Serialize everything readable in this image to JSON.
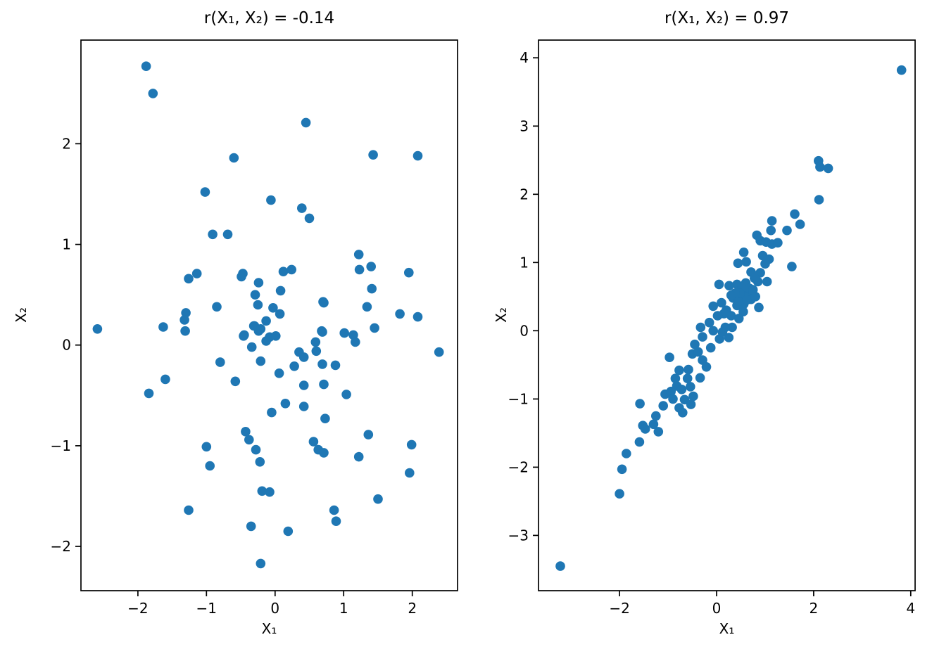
{
  "figure": {
    "background": "#ffffff",
    "spine_color": "#000000",
    "tick_label_color": "#000000"
  },
  "chart_data": [
    {
      "type": "scatter",
      "title": "r(X₁, X₂) = -0.14",
      "xlabel": "X₁",
      "ylabel": "X₂",
      "marker_color": "#1f77b4",
      "grid": false,
      "legend": null,
      "xlim": [
        -2.83,
        2.66
      ],
      "ylim": [
        -2.44,
        3.03
      ],
      "xticks": [
        -2,
        -1,
        0,
        1,
        2
      ],
      "yticks": [
        -2,
        -1,
        0,
        1,
        2
      ],
      "points": [
        [
          -1.88,
          2.77
        ],
        [
          -1.78,
          2.5
        ],
        [
          -0.6,
          1.86
        ],
        [
          -1.02,
          1.52
        ],
        [
          -0.06,
          1.44
        ],
        [
          -0.91,
          1.1
        ],
        [
          -0.69,
          1.1
        ],
        [
          -1.14,
          0.71
        ],
        [
          -1.26,
          0.66
        ],
        [
          -0.47,
          0.71
        ],
        [
          -0.85,
          0.38
        ],
        [
          -1.3,
          0.32
        ],
        [
          0.45,
          2.21
        ],
        [
          1.43,
          1.89
        ],
        [
          2.08,
          1.88
        ],
        [
          0.39,
          1.36
        ],
        [
          0.5,
          1.26
        ],
        [
          1.22,
          0.9
        ],
        [
          0.12,
          0.73
        ],
        [
          0.24,
          0.75
        ],
        [
          1.23,
          0.75
        ],
        [
          1.4,
          0.78
        ],
        [
          1.95,
          0.72
        ],
        [
          1.41,
          0.56
        ],
        [
          0.71,
          0.42
        ],
        [
          1.34,
          0.38
        ],
        [
          1.82,
          0.31
        ],
        [
          2.08,
          0.28
        ],
        [
          -0.49,
          0.68
        ],
        [
          -0.24,
          0.62
        ],
        [
          -0.29,
          0.5
        ],
        [
          -0.25,
          0.4
        ],
        [
          0.08,
          0.54
        ],
        [
          0.7,
          0.43
        ],
        [
          -0.03,
          0.37
        ],
        [
          0.07,
          0.31
        ],
        [
          -0.13,
          0.24
        ],
        [
          -0.31,
          0.19
        ],
        [
          -0.24,
          0.14
        ],
        [
          -0.46,
          0.09
        ],
        [
          -0.08,
          0.08
        ],
        [
          0.01,
          0.09
        ],
        [
          0.68,
          0.14
        ],
        [
          -0.34,
          -0.02
        ],
        [
          0.59,
          0.03
        ],
        [
          0.6,
          -0.06
        ],
        [
          0.35,
          -0.07
        ],
        [
          0.42,
          -0.12
        ],
        [
          1.01,
          0.12
        ],
        [
          1.14,
          0.1
        ],
        [
          1.17,
          0.03
        ],
        [
          0.28,
          -0.21
        ],
        [
          0.69,
          -0.19
        ],
        [
          0.88,
          -0.2
        ],
        [
          1.45,
          0.17
        ],
        [
          -2.59,
          0.16
        ],
        [
          -1.63,
          0.18
        ],
        [
          -1.32,
          0.25
        ],
        [
          -1.31,
          0.14
        ],
        [
          -0.45,
          0.1
        ],
        [
          -0.3,
          0.19
        ],
        [
          -0.21,
          0.16
        ],
        [
          -0.13,
          0.04
        ],
        [
          -0.21,
          -0.16
        ],
        [
          -0.8,
          -0.17
        ],
        [
          -1.6,
          -0.34
        ],
        [
          -0.58,
          -0.36
        ],
        [
          -1.84,
          -0.48
        ],
        [
          -0.05,
          -0.67
        ],
        [
          -0.43,
          -0.86
        ],
        [
          -0.38,
          -0.94
        ],
        [
          -1.0,
          -1.01
        ],
        [
          -0.28,
          -1.04
        ],
        [
          -0.95,
          -1.2
        ],
        [
          -0.22,
          -1.16
        ],
        [
          -0.19,
          -1.45
        ],
        [
          -0.08,
          -1.46
        ],
        [
          -1.26,
          -1.64
        ],
        [
          -0.35,
          -1.8
        ],
        [
          -0.21,
          -2.17
        ],
        [
          0.69,
          0.13
        ],
        [
          2.39,
          -0.07
        ],
        [
          0.06,
          -0.28
        ],
        [
          0.42,
          -0.4
        ],
        [
          0.71,
          -0.39
        ],
        [
          1.04,
          -0.49
        ],
        [
          0.15,
          -0.58
        ],
        [
          0.42,
          -0.61
        ],
        [
          0.73,
          -0.73
        ],
        [
          1.36,
          -0.89
        ],
        [
          0.56,
          -0.96
        ],
        [
          0.63,
          -1.04
        ],
        [
          0.71,
          -1.07
        ],
        [
          1.22,
          -1.11
        ],
        [
          1.99,
          -0.99
        ],
        [
          1.96,
          -1.27
        ],
        [
          1.5,
          -1.53
        ],
        [
          0.86,
          -1.64
        ],
        [
          0.89,
          -1.75
        ],
        [
          0.19,
          -1.85
        ]
      ]
    },
    {
      "type": "scatter",
      "title": "r(X₁, X₂) = 0.97",
      "xlabel": "X₁",
      "ylabel": "X₂",
      "marker_color": "#1f77b4",
      "grid": false,
      "legend": null,
      "xlim": [
        -3.67,
        4.09
      ],
      "ylim": [
        -3.81,
        4.26
      ],
      "xticks": [
        -2,
        0,
        2,
        4
      ],
      "yticks": [
        -3,
        -2,
        -1,
        0,
        1,
        2,
        3,
        4
      ],
      "points": [
        [
          3.81,
          3.82
        ],
        [
          2.1,
          2.49
        ],
        [
          2.13,
          2.4
        ],
        [
          2.3,
          2.38
        ],
        [
          2.11,
          1.92
        ],
        [
          1.61,
          1.71
        ],
        [
          1.72,
          1.56
        ],
        [
          1.45,
          1.47
        ],
        [
          1.14,
          1.61
        ],
        [
          1.12,
          1.47
        ],
        [
          0.83,
          1.4
        ],
        [
          0.9,
          1.32
        ],
        [
          1.02,
          1.3
        ],
        [
          1.14,
          1.27
        ],
        [
          1.26,
          1.29
        ],
        [
          0.95,
          1.1
        ],
        [
          1.08,
          1.05
        ],
        [
          0.56,
          1.15
        ],
        [
          0.61,
          1.01
        ],
        [
          0.44,
          0.99
        ],
        [
          1.0,
          0.98
        ],
        [
          1.55,
          0.94
        ],
        [
          0.9,
          0.85
        ],
        [
          0.85,
          0.72
        ],
        [
          0.71,
          0.86
        ],
        [
          0.78,
          0.77
        ],
        [
          1.04,
          0.72
        ],
        [
          0.42,
          0.68
        ],
        [
          0.66,
          0.56
        ],
        [
          0.51,
          0.51
        ],
        [
          0.34,
          0.48
        ],
        [
          0.71,
          0.46
        ],
        [
          0.56,
          0.39
        ],
        [
          0.42,
          0.37
        ],
        [
          0.87,
          0.34
        ],
        [
          0.6,
          0.7
        ],
        [
          0.52,
          0.62
        ],
        [
          0.68,
          0.62
        ],
        [
          0.75,
          0.6
        ],
        [
          0.58,
          0.5
        ],
        [
          0.46,
          0.44
        ],
        [
          0.62,
          0.45
        ],
        [
          0.8,
          0.5
        ],
        [
          0.48,
          0.55
        ],
        [
          0.38,
          0.55
        ],
        [
          0.3,
          0.52
        ],
        [
          0.55,
          0.28
        ],
        [
          0.2,
          0.3
        ],
        [
          0.3,
          0.22
        ],
        [
          0.05,
          0.68
        ],
        [
          0.26,
          0.66
        ],
        [
          -0.07,
          0.36
        ],
        [
          0.1,
          0.41
        ],
        [
          0.15,
          0.25
        ],
        [
          0.46,
          0.18
        ],
        [
          0.32,
          0.05
        ],
        [
          0.25,
          -0.1
        ],
        [
          -0.07,
          0.0
        ],
        [
          0.06,
          -0.12
        ],
        [
          -0.29,
          -0.09
        ],
        [
          -0.33,
          0.05
        ],
        [
          0.18,
          0.05
        ],
        [
          0.02,
          0.22
        ],
        [
          -0.15,
          0.12
        ],
        [
          0.12,
          -0.02
        ],
        [
          -0.12,
          -0.25
        ],
        [
          -0.97,
          -0.39
        ],
        [
          -0.77,
          -0.58
        ],
        [
          -0.58,
          -0.57
        ],
        [
          -0.5,
          -0.34
        ],
        [
          -0.38,
          -0.31
        ],
        [
          -0.29,
          -0.43
        ],
        [
          -0.21,
          -0.53
        ],
        [
          -0.45,
          -0.2
        ],
        [
          -0.82,
          -0.81
        ],
        [
          -0.72,
          -0.86
        ],
        [
          -0.54,
          -0.82
        ],
        [
          -0.48,
          -0.96
        ],
        [
          -0.66,
          -1.01
        ],
        [
          -0.53,
          -1.08
        ],
        [
          -0.77,
          -1.13
        ],
        [
          -0.7,
          -1.2
        ],
        [
          -1.06,
          -0.93
        ],
        [
          -0.94,
          -0.89
        ],
        [
          -0.34,
          -0.69
        ],
        [
          -0.6,
          -0.7
        ],
        [
          -0.85,
          -0.7
        ],
        [
          -0.9,
          -1.0
        ],
        [
          -1.1,
          -1.1
        ],
        [
          -1.58,
          -1.07
        ],
        [
          -1.25,
          -1.25
        ],
        [
          -1.3,
          -1.37
        ],
        [
          -1.2,
          -1.48
        ],
        [
          -1.52,
          -1.39
        ],
        [
          -1.47,
          -1.44
        ],
        [
          -1.59,
          -1.63
        ],
        [
          -1.86,
          -1.8
        ],
        [
          -1.95,
          -2.03
        ],
        [
          -2.0,
          -2.39
        ],
        [
          -3.22,
          -3.45
        ]
      ]
    }
  ]
}
